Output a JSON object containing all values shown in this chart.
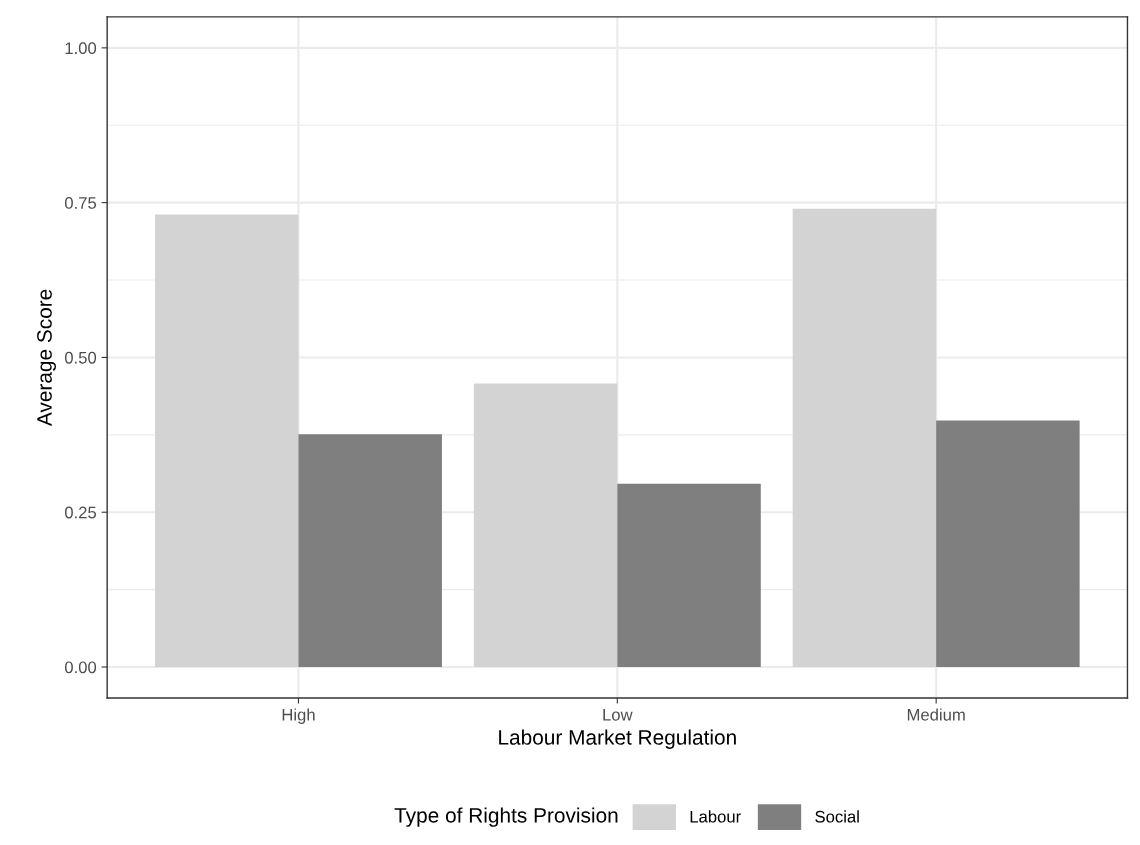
{
  "chart_data": {
    "type": "bar",
    "xlabel": "Labour Market Regulation",
    "ylabel": "Average Score",
    "legend_title": "Type of Rights Provision",
    "categories": [
      "High",
      "Low",
      "Medium"
    ],
    "series": [
      {
        "name": "Labour",
        "color": "#d3d3d3",
        "values": [
          0.731,
          0.458,
          0.74
        ]
      },
      {
        "name": "Social",
        "color": "#7f7f7f",
        "values": [
          0.376,
          0.296,
          0.398
        ]
      }
    ],
    "ylim": [
      -0.05,
      1.05
    ],
    "yticks": [
      {
        "value": 0,
        "label": "0.00"
      },
      {
        "value": 0.25,
        "label": "0.25"
      },
      {
        "value": 0.5,
        "label": "0.50"
      },
      {
        "value": 0.75,
        "label": "0.75"
      },
      {
        "value": 1,
        "label": "1.00"
      }
    ],
    "grid": true,
    "legend": "bottom"
  }
}
